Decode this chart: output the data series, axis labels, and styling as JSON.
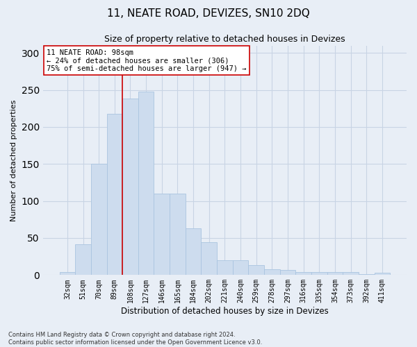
{
  "title": "11, NEATE ROAD, DEVIZES, SN10 2DQ",
  "subtitle": "Size of property relative to detached houses in Devizes",
  "xlabel": "Distribution of detached houses by size in Devizes",
  "ylabel": "Number of detached properties",
  "categories": [
    "32sqm",
    "51sqm",
    "70sqm",
    "89sqm",
    "108sqm",
    "127sqm",
    "146sqm",
    "165sqm",
    "184sqm",
    "202sqm",
    "221sqm",
    "240sqm",
    "259sqm",
    "278sqm",
    "297sqm",
    "316sqm",
    "335sqm",
    "354sqm",
    "373sqm",
    "392sqm",
    "411sqm"
  ],
  "values": [
    4,
    42,
    150,
    218,
    238,
    248,
    110,
    110,
    63,
    44,
    20,
    20,
    13,
    8,
    7,
    4,
    4,
    4,
    4,
    1,
    3
  ],
  "bar_color": "#cddcee",
  "bar_edge_color": "#aac4e0",
  "grid_color": "#c8d4e4",
  "background_color": "#e8eef6",
  "property_line_color": "#cc0000",
  "annotation_text": "11 NEATE ROAD: 98sqm\n← 24% of detached houses are smaller (306)\n75% of semi-detached houses are larger (947) →",
  "annotation_box_facecolor": "#ffffff",
  "annotation_box_edgecolor": "#cc0000",
  "footer_text": "Contains HM Land Registry data © Crown copyright and database right 2024.\nContains public sector information licensed under the Open Government Licence v3.0.",
  "ylim": [
    0,
    310
  ],
  "figsize": [
    6.0,
    5.0
  ],
  "dpi": 100,
  "title_fontsize": 11,
  "subtitle_fontsize": 9,
  "ylabel_fontsize": 8,
  "xlabel_fontsize": 8.5,
  "tick_fontsize": 7,
  "annotation_fontsize": 7.5,
  "footer_fontsize": 6
}
